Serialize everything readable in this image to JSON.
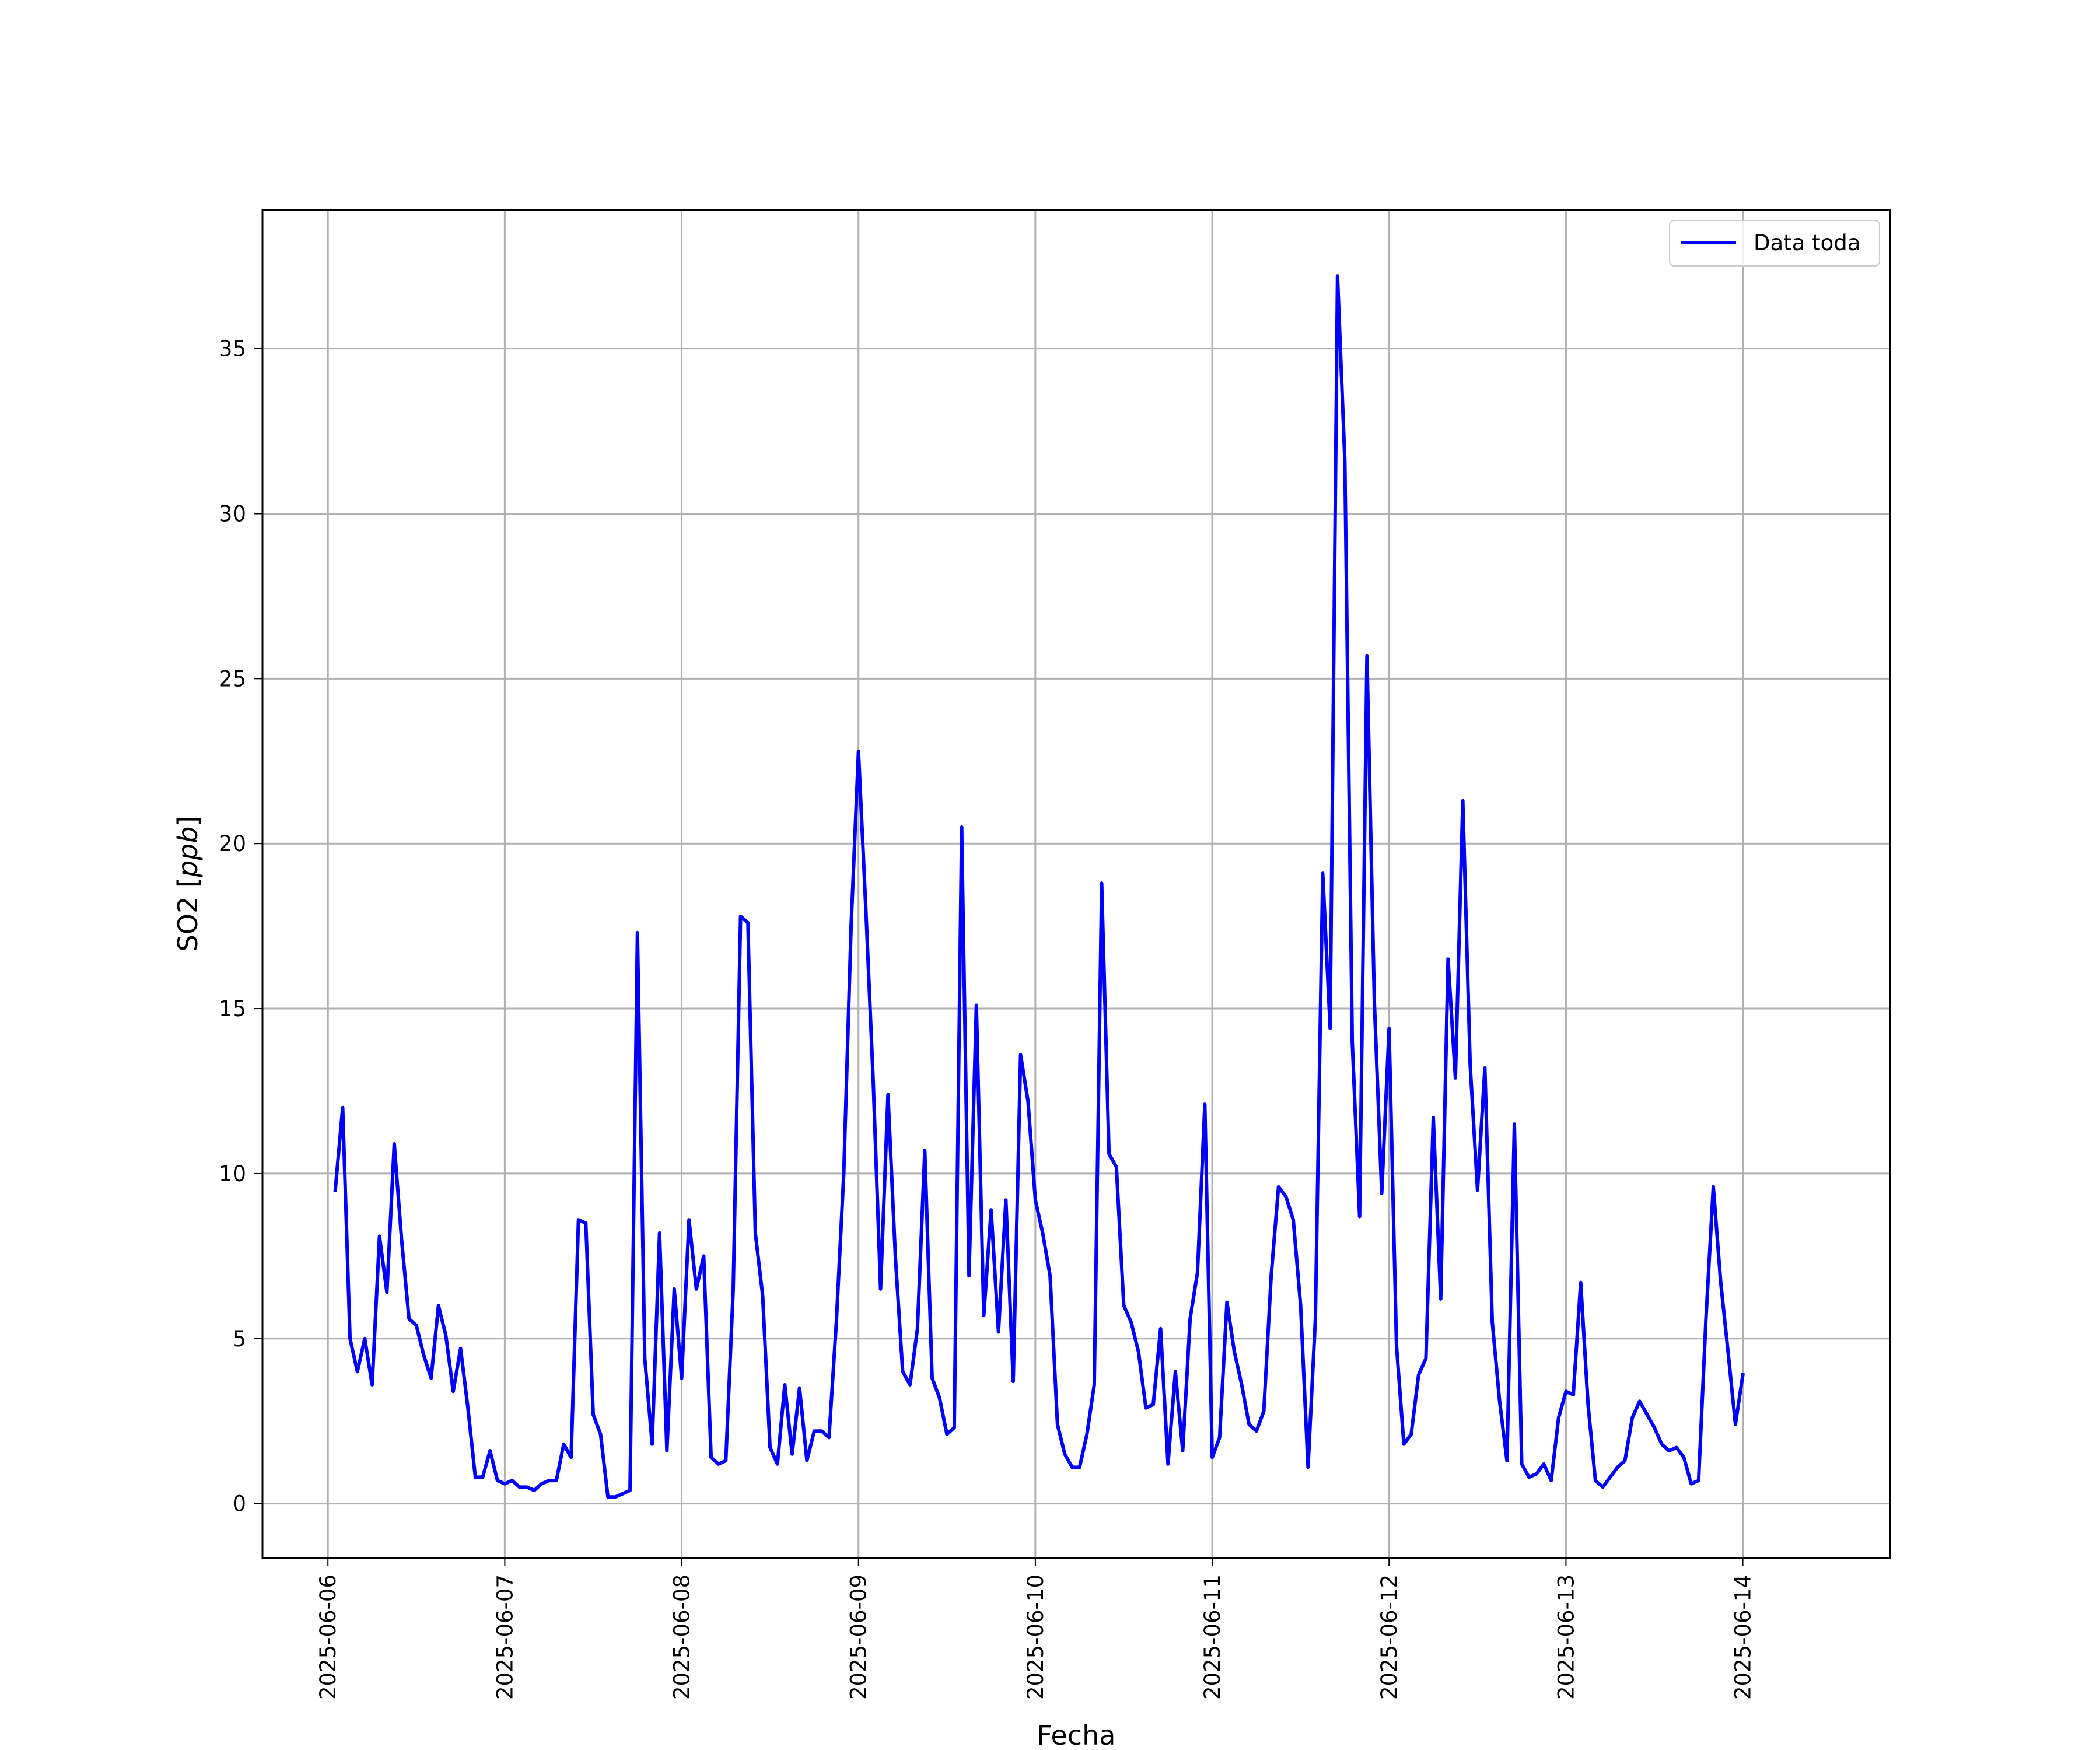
{
  "chart_data": {
    "type": "line",
    "xlabel": "Fecha",
    "ylabel": "SO2",
    "ylabel_unit": "ppb",
    "x_ticks": [
      "2025-06-06",
      "2025-06-07",
      "2025-06-08",
      "2025-06-09",
      "2025-06-10",
      "2025-06-11",
      "2025-06-12",
      "2025-06-13",
      "2025-06-14"
    ],
    "y_ticks": [
      0,
      5,
      10,
      15,
      20,
      25,
      30,
      35
    ],
    "xlim": [
      "2025-06-05 15:07",
      "2025-06-14 19:59"
    ],
    "ylim": [
      -1.65,
      39.2
    ],
    "grid": true,
    "legend_position": "upper right",
    "series": [
      {
        "name": "Data toda",
        "color": "#0000ff",
        "x": [
          "2025-06-06 01:00",
          "2025-06-06 02:00",
          "2025-06-06 03:00",
          "2025-06-06 04:00",
          "2025-06-06 05:00",
          "2025-06-06 06:00",
          "2025-06-06 07:00",
          "2025-06-06 08:00",
          "2025-06-06 09:00",
          "2025-06-06 10:00",
          "2025-06-06 11:00",
          "2025-06-06 12:00",
          "2025-06-06 13:00",
          "2025-06-06 14:00",
          "2025-06-06 15:00",
          "2025-06-06 16:00",
          "2025-06-06 17:00",
          "2025-06-06 18:00",
          "2025-06-06 19:00",
          "2025-06-06 20:00",
          "2025-06-06 21:00",
          "2025-06-06 22:00",
          "2025-06-06 23:00",
          "2025-06-07 00:00",
          "2025-06-07 01:00",
          "2025-06-07 02:00",
          "2025-06-07 03:00",
          "2025-06-07 04:00",
          "2025-06-07 05:00",
          "2025-06-07 06:00",
          "2025-06-07 07:00",
          "2025-06-07 08:00",
          "2025-06-07 09:00",
          "2025-06-07 10:00",
          "2025-06-07 11:00",
          "2025-06-07 12:00",
          "2025-06-07 13:00",
          "2025-06-07 14:00",
          "2025-06-07 15:00",
          "2025-06-07 16:00",
          "2025-06-07 17:00",
          "2025-06-07 18:00",
          "2025-06-07 19:00",
          "2025-06-07 20:00",
          "2025-06-07 21:00",
          "2025-06-07 22:00",
          "2025-06-07 23:00",
          "2025-06-08 00:00",
          "2025-06-08 01:00",
          "2025-06-08 02:00",
          "2025-06-08 03:00",
          "2025-06-08 04:00",
          "2025-06-08 05:00",
          "2025-06-08 06:00",
          "2025-06-08 07:00",
          "2025-06-08 08:00",
          "2025-06-08 09:00",
          "2025-06-08 10:00",
          "2025-06-08 11:00",
          "2025-06-08 12:00",
          "2025-06-08 13:00",
          "2025-06-08 14:00",
          "2025-06-08 15:00",
          "2025-06-08 16:00",
          "2025-06-08 17:00",
          "2025-06-08 18:00",
          "2025-06-08 19:00",
          "2025-06-08 20:00",
          "2025-06-08 21:00",
          "2025-06-08 22:00",
          "2025-06-08 23:00",
          "2025-06-09 00:00",
          "2025-06-09 01:00",
          "2025-06-09 02:00",
          "2025-06-09 03:00",
          "2025-06-09 04:00",
          "2025-06-09 05:00",
          "2025-06-09 06:00",
          "2025-06-09 07:00",
          "2025-06-09 08:00",
          "2025-06-09 09:00",
          "2025-06-09 10:00",
          "2025-06-09 11:00",
          "2025-06-09 12:00",
          "2025-06-09 13:00",
          "2025-06-09 14:00",
          "2025-06-09 15:00",
          "2025-06-09 16:00",
          "2025-06-09 17:00",
          "2025-06-09 18:00",
          "2025-06-09 19:00",
          "2025-06-09 20:00",
          "2025-06-09 21:00",
          "2025-06-09 22:00",
          "2025-06-09 23:00",
          "2025-06-10 00:00",
          "2025-06-10 01:00",
          "2025-06-10 02:00",
          "2025-06-10 03:00",
          "2025-06-10 04:00",
          "2025-06-10 05:00",
          "2025-06-10 06:00",
          "2025-06-10 07:00",
          "2025-06-10 08:00",
          "2025-06-10 09:00",
          "2025-06-10 10:00",
          "2025-06-10 11:00",
          "2025-06-10 12:00",
          "2025-06-10 13:00",
          "2025-06-10 14:00",
          "2025-06-10 15:00",
          "2025-06-10 16:00",
          "2025-06-10 17:00",
          "2025-06-10 18:00",
          "2025-06-10 19:00",
          "2025-06-10 20:00",
          "2025-06-10 21:00",
          "2025-06-10 22:00",
          "2025-06-10 23:00",
          "2025-06-11 00:00",
          "2025-06-11 01:00",
          "2025-06-11 02:00",
          "2025-06-11 03:00",
          "2025-06-11 04:00",
          "2025-06-11 05:00",
          "2025-06-11 06:00",
          "2025-06-11 07:00",
          "2025-06-11 08:00",
          "2025-06-11 09:00",
          "2025-06-11 10:00",
          "2025-06-11 11:00",
          "2025-06-11 12:00",
          "2025-06-11 13:00",
          "2025-06-11 14:00",
          "2025-06-11 15:00",
          "2025-06-11 16:00",
          "2025-06-11 17:00",
          "2025-06-11 18:00",
          "2025-06-11 19:00",
          "2025-06-11 20:00",
          "2025-06-11 21:00",
          "2025-06-11 22:00",
          "2025-06-11 23:00",
          "2025-06-12 00:00",
          "2025-06-12 01:00",
          "2025-06-12 02:00",
          "2025-06-12 03:00",
          "2025-06-12 04:00",
          "2025-06-12 05:00",
          "2025-06-12 06:00",
          "2025-06-12 07:00",
          "2025-06-12 08:00",
          "2025-06-12 09:00",
          "2025-06-12 10:00",
          "2025-06-12 11:00",
          "2025-06-12 12:00",
          "2025-06-12 13:00",
          "2025-06-12 14:00",
          "2025-06-12 15:00",
          "2025-06-12 16:00",
          "2025-06-12 17:00",
          "2025-06-12 18:00",
          "2025-06-12 19:00",
          "2025-06-12 20:00",
          "2025-06-12 21:00",
          "2025-06-12 22:00",
          "2025-06-12 23:00",
          "2025-06-13 00:00",
          "2025-06-13 01:00",
          "2025-06-13 02:00",
          "2025-06-13 03:00",
          "2025-06-13 04:00",
          "2025-06-13 05:00",
          "2025-06-13 06:00",
          "2025-06-13 07:00",
          "2025-06-13 08:00",
          "2025-06-13 09:00",
          "2025-06-13 10:00",
          "2025-06-13 11:00",
          "2025-06-13 12:00",
          "2025-06-13 13:00",
          "2025-06-13 14:00",
          "2025-06-13 15:00",
          "2025-06-13 16:00",
          "2025-06-13 17:00",
          "2025-06-13 18:00",
          "2025-06-13 19:00",
          "2025-06-13 20:00",
          "2025-06-13 21:00",
          "2025-06-13 22:00",
          "2025-06-13 23:00",
          "2025-06-14 00:00"
        ],
        "values": [
          9.5,
          12.0,
          5.0,
          4.0,
          5.0,
          3.6,
          8.1,
          6.4,
          10.9,
          8.0,
          5.6,
          5.4,
          4.5,
          3.8,
          6.0,
          5.1,
          3.4,
          4.7,
          2.9,
          0.8,
          0.8,
          1.6,
          0.7,
          0.6,
          0.7,
          0.5,
          0.5,
          0.4,
          0.6,
          0.7,
          0.7,
          1.8,
          1.4,
          8.6,
          8.5,
          2.7,
          2.1,
          0.2,
          0.2,
          0.3,
          0.4,
          17.3,
          4.4,
          1.8,
          8.2,
          1.6,
          6.5,
          3.8,
          8.6,
          6.5,
          7.5,
          1.4,
          1.2,
          1.3,
          6.5,
          17.8,
          17.6,
          8.2,
          6.3,
          1.7,
          1.2,
          3.6,
          1.5,
          3.5,
          1.3,
          2.2,
          2.2,
          2.0,
          5.5,
          10.0,
          17.5,
          22.8,
          18.0,
          12.8,
          6.5,
          12.4,
          7.5,
          4.0,
          3.6,
          5.3,
          10.7,
          3.8,
          3.2,
          2.1,
          2.3,
          20.5,
          6.9,
          15.1,
          5.7,
          8.9,
          5.2,
          9.2,
          3.7,
          13.6,
          12.2,
          9.2,
          8.2,
          6.9,
          2.4,
          1.5,
          1.1,
          1.1,
          2.1,
          3.6,
          18.8,
          10.6,
          10.2,
          6.0,
          5.5,
          4.6,
          2.9,
          3.0,
          5.3,
          1.2,
          4.0,
          1.6,
          5.6,
          7.0,
          12.1,
          1.4,
          2.0,
          6.1,
          4.6,
          3.6,
          2.4,
          2.2,
          2.8,
          6.9,
          9.6,
          9.3,
          8.6,
          6.0,
          1.1,
          5.6,
          19.1,
          14.4,
          37.2,
          31.6,
          14.0,
          8.7,
          25.7,
          15.2,
          9.4,
          14.4,
          4.8,
          1.8,
          2.1,
          3.9,
          4.4,
          11.7,
          6.2,
          16.5,
          12.9,
          21.3,
          13.3,
          9.5,
          13.2,
          5.5,
          3.1,
          1.3,
          11.5,
          1.2,
          0.8,
          0.9,
          1.2,
          0.7,
          2.6,
          3.4,
          3.3,
          6.7,
          3.0,
          0.7,
          0.5,
          0.8,
          1.1,
          1.3,
          2.6,
          3.1,
          2.7,
          2.3,
          1.8,
          1.6,
          1.7,
          1.4,
          0.6,
          0.7,
          5.6,
          9.6,
          6.7,
          4.6,
          2.4,
          3.9
        ]
      }
    ]
  }
}
